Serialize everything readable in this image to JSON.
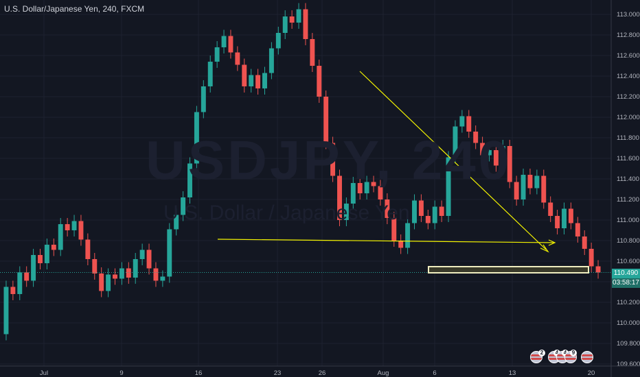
{
  "header": {
    "symbol": "U.S. Dollar/Japanese Yen",
    "interval": "240",
    "exchange": "FXCM"
  },
  "watermark": {
    "ticker": "USDJPY, 240",
    "name": "U.S. Dollar / Japanese Yen"
  },
  "price_tags": {
    "last_price": "110.490",
    "countdown": "03:58:17"
  },
  "colors": {
    "background": "#131722",
    "up": "#26a69a",
    "down": "#ef5350",
    "trendline": "#f5f500",
    "grid": "#1e2230",
    "last_price": "#26a69a"
  },
  "events": [
    {
      "badge": "2",
      "icon": "us-flag-icon"
    },
    {
      "badge": "4",
      "icon": "us-flag-icon"
    },
    {
      "badge": "4",
      "icon": "us-flag-icon"
    },
    {
      "badge": "9",
      "icon": "us-flag-icon"
    },
    {
      "badge": "",
      "icon": "us-flag-icon"
    }
  ],
  "chart_data": {
    "type": "candlestick",
    "ylim": [
      109.58,
      113.14
    ],
    "y_ticks": [
      "113.000",
      "112.800",
      "112.600",
      "112.400",
      "112.200",
      "112.000",
      "111.800",
      "111.600",
      "111.400",
      "111.200",
      "111.000",
      "110.800",
      "110.600",
      "110.400",
      "110.200",
      "110.000",
      "109.800",
      "109.600"
    ],
    "x_ticks": [
      "Jul",
      "9",
      "16",
      "23",
      "26",
      "Aug",
      "6",
      "13",
      "20"
    ],
    "grid": true,
    "last_price": 110.49,
    "candles": [
      [
        109.89,
        110.35
      ],
      [
        110.35,
        110.28
      ],
      [
        110.28,
        110.49
      ],
      [
        110.49,
        110.41
      ],
      [
        110.41,
        110.66
      ],
      [
        110.66,
        110.58
      ],
      [
        110.58,
        110.76
      ],
      [
        110.76,
        110.71
      ],
      [
        110.71,
        110.96
      ],
      [
        110.96,
        110.9
      ],
      [
        110.9,
        110.99
      ],
      [
        110.99,
        110.81
      ],
      [
        110.81,
        110.62
      ],
      [
        110.62,
        110.48
      ],
      [
        110.48,
        110.31
      ],
      [
        110.31,
        110.47
      ],
      [
        110.47,
        110.43
      ],
      [
        110.43,
        110.53
      ],
      [
        110.53,
        110.44
      ],
      [
        110.44,
        110.62
      ],
      [
        110.62,
        110.71
      ],
      [
        110.71,
        110.53
      ],
      [
        110.53,
        110.41
      ],
      [
        110.41,
        110.45
      ],
      [
        110.45,
        110.91
      ],
      [
        110.91,
        111.05
      ],
      [
        111.05,
        111.22
      ],
      [
        111.22,
        111.55
      ],
      [
        111.55,
        112.05
      ],
      [
        112.05,
        112.3
      ],
      [
        112.3,
        112.54
      ],
      [
        112.54,
        112.68
      ],
      [
        112.68,
        112.79
      ],
      [
        112.79,
        112.63
      ],
      [
        112.63,
        112.51
      ],
      [
        112.51,
        112.3
      ],
      [
        112.3,
        112.41
      ],
      [
        112.41,
        112.28
      ],
      [
        112.28,
        112.43
      ],
      [
        112.43,
        112.67
      ],
      [
        112.67,
        112.82
      ],
      [
        112.82,
        112.98
      ],
      [
        112.98,
        112.92
      ],
      [
        112.92,
        113.05
      ],
      [
        113.05,
        112.76
      ],
      [
        112.76,
        112.5
      ],
      [
        112.5,
        112.2
      ],
      [
        112.2,
        111.75
      ],
      [
        111.75,
        111.43
      ],
      [
        111.43,
        111.0
      ],
      [
        111.0,
        111.16
      ],
      [
        111.16,
        111.36
      ],
      [
        111.36,
        111.26
      ],
      [
        111.26,
        111.37
      ],
      [
        111.37,
        111.33
      ],
      [
        111.33,
        111.2
      ],
      [
        111.2,
        111.02
      ],
      [
        111.02,
        110.8
      ],
      [
        110.8,
        110.73
      ],
      [
        110.73,
        110.97
      ],
      [
        110.97,
        111.19
      ],
      [
        111.19,
        111.04
      ],
      [
        111.04,
        110.97
      ],
      [
        110.97,
        111.13
      ],
      [
        111.13,
        111.04
      ],
      [
        111.04,
        111.61
      ],
      [
        111.61,
        111.91
      ],
      [
        111.91,
        112.01
      ],
      [
        112.01,
        111.86
      ],
      [
        111.86,
        111.75
      ],
      [
        111.75,
        111.63
      ],
      [
        111.63,
        111.68
      ],
      [
        111.68,
        111.53
      ],
      [
        111.53,
        111.72
      ],
      [
        111.72,
        111.37
      ],
      [
        111.37,
        111.2
      ],
      [
        111.2,
        111.44
      ],
      [
        111.44,
        111.31
      ],
      [
        111.31,
        111.43
      ],
      [
        111.43,
        111.17
      ],
      [
        111.17,
        111.04
      ],
      [
        111.04,
        110.92
      ],
      [
        110.92,
        111.11
      ],
      [
        111.11,
        110.97
      ],
      [
        110.97,
        110.84
      ],
      [
        110.84,
        110.72
      ],
      [
        110.72,
        110.55
      ],
      [
        110.55,
        110.49
      ]
    ],
    "annotations": {
      "descending_trendline": [
        [
          0.565,
          111.88
        ],
        [
          0.865,
          110.8
        ]
      ],
      "horizontal_line": [
        [
          0.34,
          110.83
        ],
        [
          0.86,
          110.8
        ]
      ],
      "support_zone": [
        110.5,
        110.57
      ]
    }
  }
}
